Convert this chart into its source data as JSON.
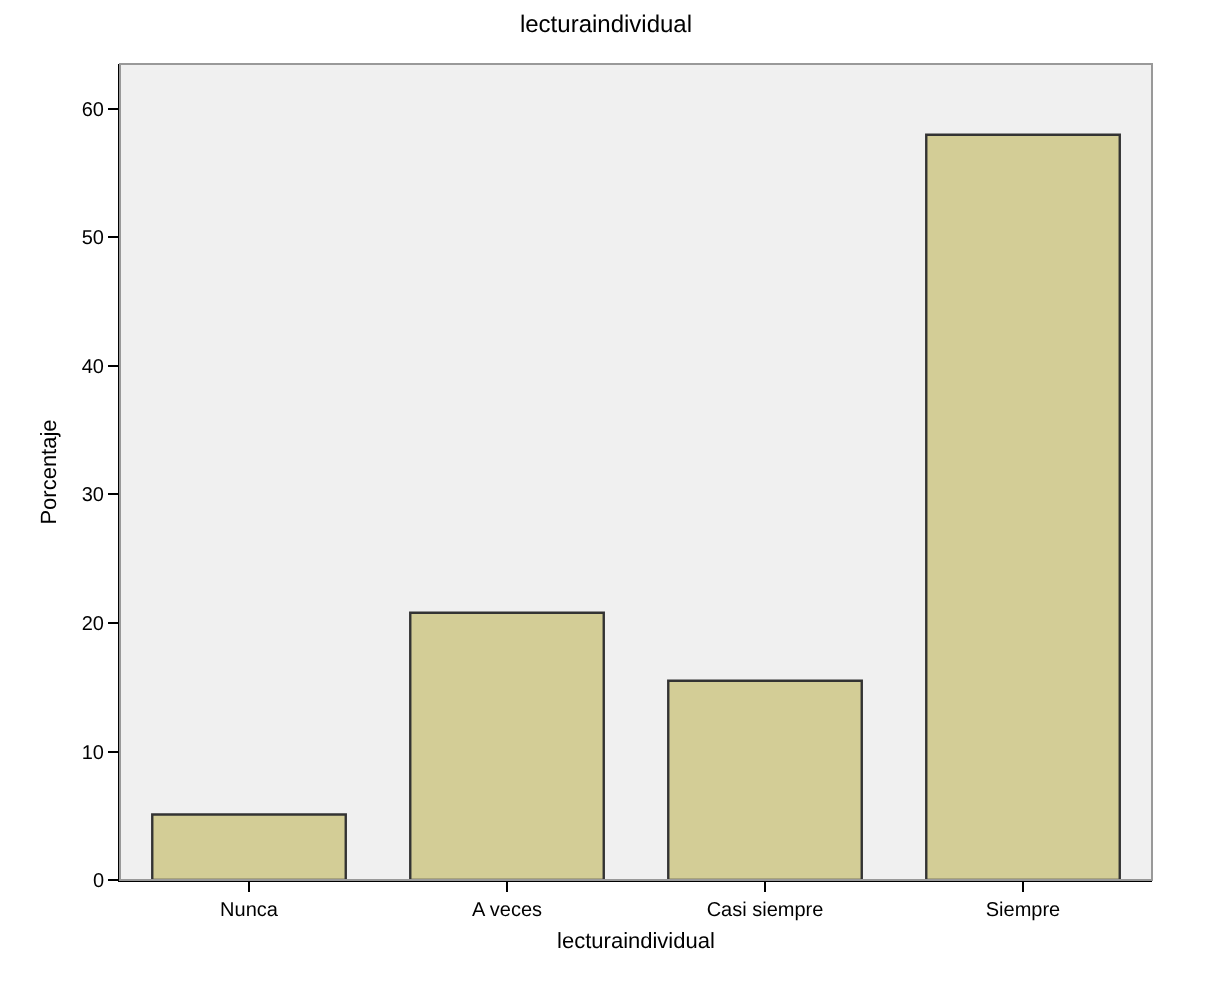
{
  "chart_data": {
    "type": "bar",
    "title": "lecturaindividual",
    "xlabel": "lecturaindividual",
    "ylabel": "Porcentaje",
    "categories": [
      "Nunca",
      "A veces",
      "Casi siempre",
      "Siempre"
    ],
    "values": [
      5.1,
      20.8,
      15.5,
      58.0
    ],
    "color": "#d3cd96",
    "ylim": [
      0,
      63.5
    ],
    "yticks": [
      0,
      10,
      20,
      30,
      40,
      50,
      60
    ],
    "grid": false,
    "legend": false
  }
}
